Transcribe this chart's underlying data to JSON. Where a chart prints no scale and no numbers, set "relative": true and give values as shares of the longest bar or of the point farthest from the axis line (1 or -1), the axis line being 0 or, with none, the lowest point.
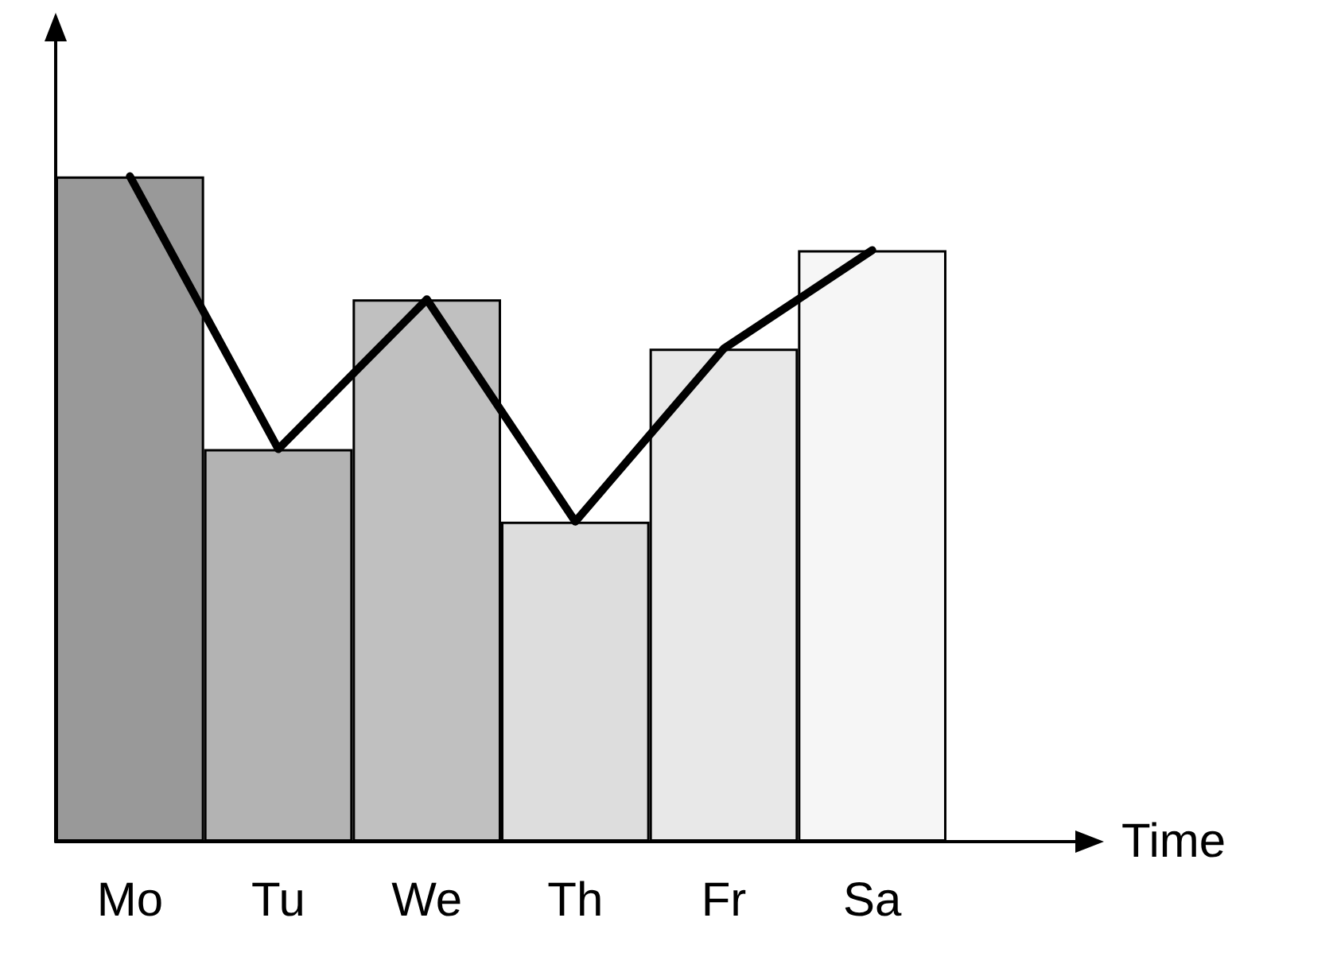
{
  "chart_data": {
    "type": "bar",
    "relative": true,
    "xlabel": "Time",
    "categories": [
      "Mo",
      "Tu",
      "We",
      "Th",
      "Fr",
      "Sa"
    ],
    "series": [
      {
        "colors": [
          "#999999",
          "#b3b3b3",
          "#c0c0c0",
          "#dddddd",
          "#e8e8e8",
          "#f6f6f6"
        ],
        "values": [
          1,
          0.59,
          0.815,
          0.481,
          0.741,
          0.889
        ]
      },
      {
        "type": "line",
        "color": "#000000",
        "values": [
          1,
          0.59,
          0.815,
          0.481,
          0.741,
          0.889
        ]
      }
    ],
    "marker": "none",
    "line_style": "solid"
  }
}
